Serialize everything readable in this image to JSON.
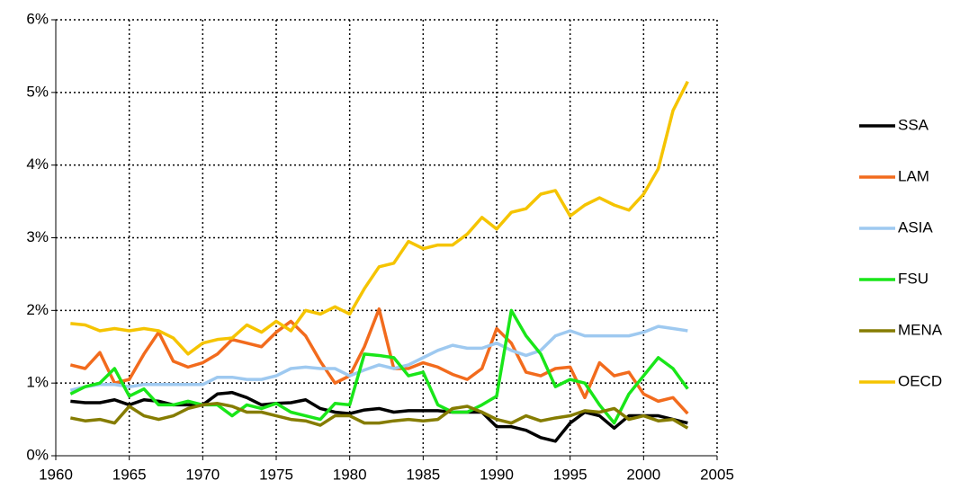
{
  "chart_data": {
    "type": "line",
    "x": [
      1961,
      1962,
      1963,
      1964,
      1965,
      1966,
      1967,
      1968,
      1969,
      1970,
      1971,
      1972,
      1973,
      1974,
      1975,
      1976,
      1977,
      1978,
      1979,
      1980,
      1981,
      1982,
      1983,
      1984,
      1985,
      1986,
      1987,
      1988,
      1989,
      1990,
      1991,
      1992,
      1993,
      1994,
      1995,
      1996,
      1997,
      1998,
      1999,
      2000,
      2001,
      2002,
      2003
    ],
    "series": [
      {
        "name": "SSA",
        "color": "#000000",
        "values": [
          0.75,
          0.73,
          0.73,
          0.77,
          0.7,
          0.77,
          0.75,
          0.7,
          0.7,
          0.7,
          0.85,
          0.87,
          0.8,
          0.7,
          0.72,
          0.73,
          0.77,
          0.65,
          0.6,
          0.58,
          0.63,
          0.65,
          0.6,
          0.62,
          0.62,
          0.62,
          0.6,
          0.6,
          0.6,
          0.4,
          0.4,
          0.35,
          0.25,
          0.2,
          0.45,
          0.6,
          0.55,
          0.38,
          0.55,
          0.55,
          0.55,
          0.5,
          0.45
        ]
      },
      {
        "name": "LAM",
        "color": "#f26b1d",
        "values": [
          1.25,
          1.2,
          1.42,
          1.0,
          1.05,
          1.4,
          1.7,
          1.3,
          1.22,
          1.28,
          1.4,
          1.6,
          1.55,
          1.5,
          1.7,
          1.85,
          1.65,
          1.3,
          1.0,
          1.1,
          1.5,
          2.02,
          1.2,
          1.2,
          1.28,
          1.22,
          1.12,
          1.05,
          1.2,
          1.75,
          1.55,
          1.15,
          1.1,
          1.2,
          1.22,
          0.8,
          1.28,
          1.1,
          1.15,
          0.85,
          0.75,
          0.8,
          0.58
        ]
      },
      {
        "name": "ASIA",
        "color": "#9ec9f0",
        "values": [
          0.9,
          0.95,
          0.98,
          0.98,
          0.95,
          0.98,
          0.98,
          0.98,
          0.98,
          0.98,
          1.08,
          1.08,
          1.05,
          1.05,
          1.1,
          1.2,
          1.22,
          1.2,
          1.2,
          1.1,
          1.18,
          1.25,
          1.2,
          1.25,
          1.35,
          1.45,
          1.52,
          1.48,
          1.48,
          1.55,
          1.45,
          1.38,
          1.45,
          1.65,
          1.72,
          1.65,
          1.65,
          1.65,
          1.65,
          1.7,
          1.78,
          1.75,
          1.72
        ]
      },
      {
        "name": "FSU",
        "color": "#19e619",
        "values": [
          0.85,
          0.95,
          1.0,
          1.2,
          0.82,
          0.92,
          0.7,
          0.7,
          0.75,
          0.7,
          0.7,
          0.55,
          0.7,
          0.65,
          0.72,
          0.6,
          0.55,
          0.5,
          0.72,
          0.7,
          1.4,
          1.38,
          1.35,
          1.1,
          1.15,
          0.7,
          0.6,
          0.6,
          0.7,
          0.82,
          2.0,
          1.65,
          1.4,
          0.95,
          1.05,
          1.0,
          0.7,
          0.45,
          0.85,
          1.1,
          1.35,
          1.2,
          0.92
        ]
      },
      {
        "name": "MENA",
        "color": "#857c00",
        "values": [
          0.52,
          0.48,
          0.5,
          0.45,
          0.68,
          0.55,
          0.5,
          0.55,
          0.65,
          0.7,
          0.72,
          0.68,
          0.6,
          0.6,
          0.55,
          0.5,
          0.48,
          0.42,
          0.55,
          0.55,
          0.45,
          0.45,
          0.48,
          0.5,
          0.48,
          0.5,
          0.65,
          0.68,
          0.6,
          0.5,
          0.45,
          0.55,
          0.48,
          0.52,
          0.55,
          0.62,
          0.6,
          0.65,
          0.5,
          0.55,
          0.48,
          0.5,
          0.38
        ]
      },
      {
        "name": "OECD",
        "color": "#f5c400",
        "values": [
          1.82,
          1.8,
          1.72,
          1.75,
          1.72,
          1.75,
          1.72,
          1.62,
          1.4,
          1.55,
          1.6,
          1.62,
          1.8,
          1.7,
          1.85,
          1.72,
          2.0,
          1.95,
          2.05,
          1.95,
          2.3,
          2.6,
          2.65,
          2.95,
          2.85,
          2.9,
          2.9,
          3.05,
          3.28,
          3.12,
          3.35,
          3.4,
          3.6,
          3.65,
          3.3,
          3.45,
          3.55,
          3.45,
          3.38,
          3.6,
          3.95,
          4.75,
          5.15
        ]
      }
    ],
    "xlim": [
      1960,
      2005
    ],
    "xticks": [
      1960,
      1965,
      1970,
      1975,
      1980,
      1985,
      1990,
      1995,
      2000,
      2005
    ],
    "ylim": [
      0,
      6
    ],
    "yticks": [
      {
        "value": 0,
        "label": "0%"
      },
      {
        "value": 1,
        "label": "1%"
      },
      {
        "value": 2,
        "label": "2%"
      },
      {
        "value": 3,
        "label": "3%"
      },
      {
        "value": 4,
        "label": "4%"
      },
      {
        "value": 5,
        "label": "5%"
      },
      {
        "value": 6,
        "label": "6%"
      }
    ],
    "grid": true,
    "legend": "right"
  }
}
